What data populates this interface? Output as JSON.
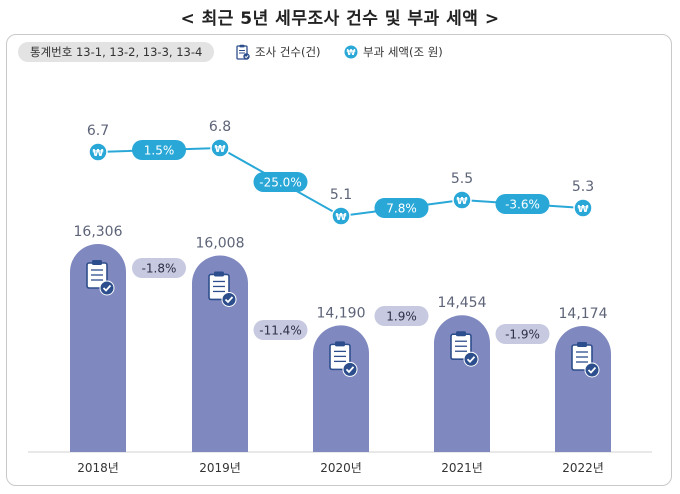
{
  "title": "< 최근 5년 세무조사 건수 및 부과 세액 >",
  "source": "통계번호 13-1, 13-2, 13-3, 13-4",
  "legend": {
    "cases_label": "조사 건수(건)",
    "tax_label": "부과 세액(조 원)",
    "cases_icon": "clipboard-check-icon",
    "tax_icon": "won-coin-icon"
  },
  "colors": {
    "bar": "#7f88bf",
    "line": "#29a8d8",
    "label_text": "#5e6478",
    "pill_bar": "#c6c9e0",
    "pill_line": "#29a8d8"
  },
  "chart_data": [
    {
      "type": "bar",
      "categories": [
        "2018년",
        "2019년",
        "2020년",
        "2021년",
        "2022년"
      ],
      "series": [
        {
          "name": "조사 건수(건)",
          "values": [
            16306,
            16008,
            14190,
            14454,
            14174
          ]
        }
      ],
      "value_labels": [
        "16,306",
        "16,008",
        "14,190",
        "14,454",
        "14,174"
      ],
      "changes": [
        "-1.8%",
        "-11.4%",
        "1.9%",
        "-1.9%"
      ]
    },
    {
      "type": "line",
      "categories": [
        "2018년",
        "2019년",
        "2020년",
        "2021년",
        "2022년"
      ],
      "series": [
        {
          "name": "부과 세액(조 원)",
          "values": [
            6.7,
            6.8,
            5.1,
            5.5,
            5.3
          ]
        }
      ],
      "value_labels": [
        "6.7",
        "6.8",
        "5.1",
        "5.5",
        "5.3"
      ],
      "changes": [
        "1.5%",
        "-25.0%",
        "7.8%",
        "-3.6%"
      ]
    }
  ]
}
